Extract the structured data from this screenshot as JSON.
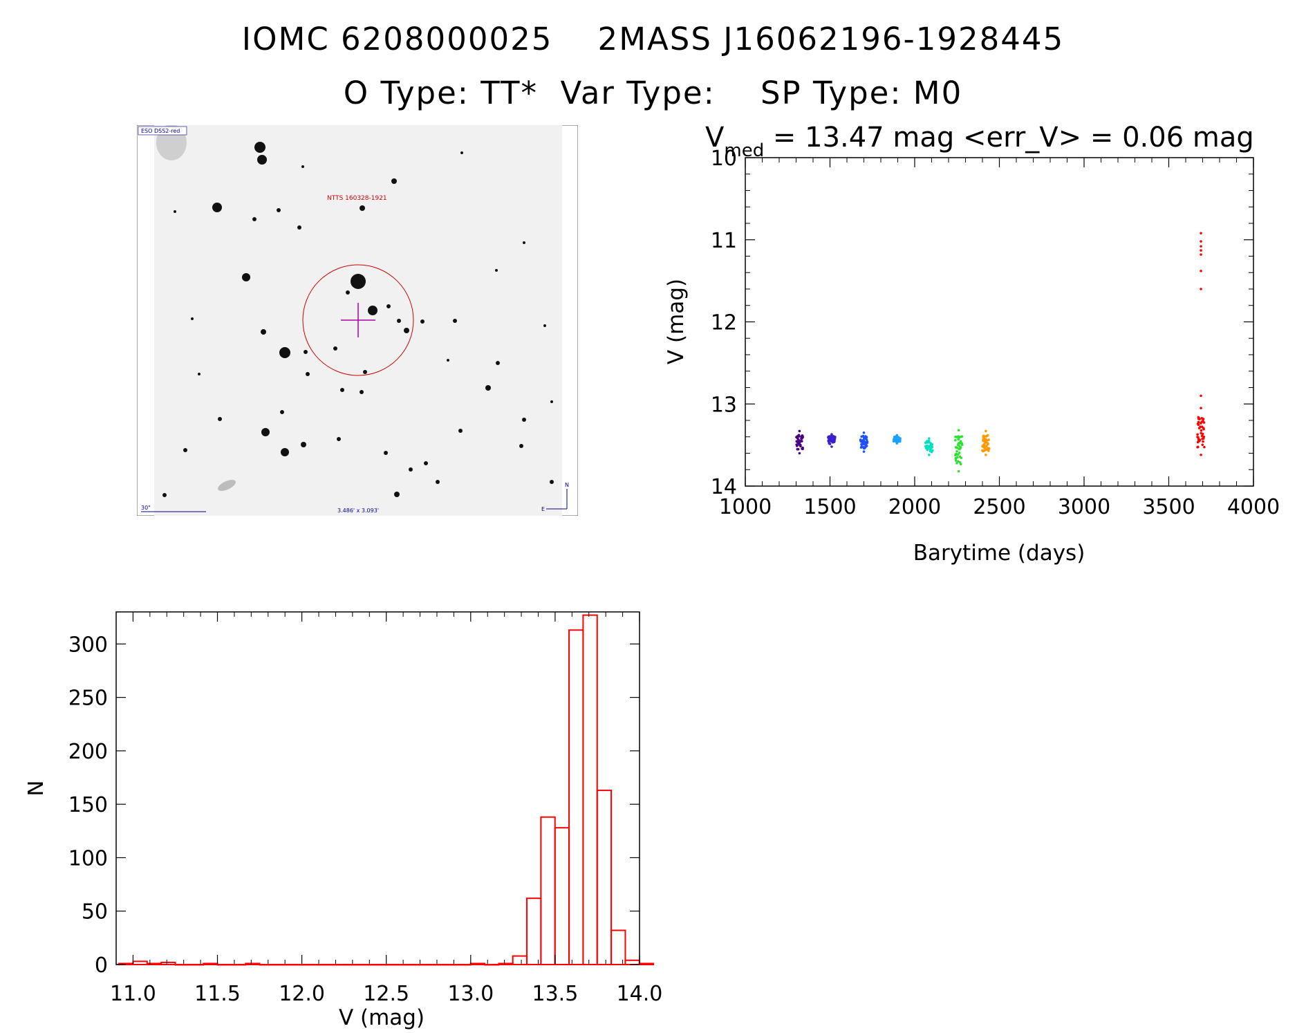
{
  "header": {
    "title_line1": "IOMC 6208000025    2MASS J16062196-1928445",
    "title_line2": "O Type: TT*  Var Type:    SP Type: M0"
  },
  "finder_chart": {
    "survey_label": "ESO DSS2-red",
    "object_label": "NTTS 160328-1921",
    "scale_label": "30\"",
    "fov_label": "3.486' x 3.093'",
    "north_label": "N",
    "east_label": "E"
  },
  "colors": {
    "histogram": "#ff0000",
    "circle": "#cc0000",
    "crosshair": "#aa00aa",
    "label_blue": "#00008b"
  },
  "chart_data": [
    {
      "type": "scatter",
      "title": "V_med = 13.47 mag <err_V> = 0.06 mag",
      "title_main": "V",
      "title_sub": "med",
      "title_rest": " = 13.47 mag <err_V> = 0.06 mag",
      "xlabel": "Barytime (days)",
      "ylabel": "V (mag)",
      "xlim": [
        1000,
        4000
      ],
      "ylim": [
        14,
        10
      ],
      "xticks": [
        1000,
        1500,
        2000,
        2500,
        3000,
        3500,
        4000
      ],
      "yticks": [
        10,
        11,
        12,
        13,
        14
      ],
      "groups": [
        {
          "x": 1320,
          "y_min": 13.33,
          "y_max": 13.6,
          "color": "#4b0082"
        },
        {
          "x": 1510,
          "y_min": 13.37,
          "y_max": 13.52,
          "color": "#3a1fd0"
        },
        {
          "x": 1700,
          "y_min": 13.35,
          "y_max": 13.58,
          "color": "#1e50ff"
        },
        {
          "x": 1895,
          "y_min": 13.38,
          "y_max": 13.48,
          "color": "#1ea0ff"
        },
        {
          "x": 2085,
          "y_min": 13.42,
          "y_max": 13.62,
          "color": "#00e0c0"
        },
        {
          "x": 2260,
          "y_min": 13.32,
          "y_max": 13.82,
          "color": "#30e030"
        },
        {
          "x": 2420,
          "y_min": 13.33,
          "y_max": 13.62,
          "color": "#ff9900"
        },
        {
          "x": 3690,
          "y_min": 13.05,
          "y_max": 13.62,
          "color": "#ff0000"
        }
      ],
      "outliers": [
        {
          "x": 3690,
          "y": 10.92,
          "color": "#ff0000"
        },
        {
          "x": 3690,
          "y": 11.02,
          "color": "#ff0000"
        },
        {
          "x": 3690,
          "y": 11.08,
          "color": "#ff0000"
        },
        {
          "x": 3690,
          "y": 11.13,
          "color": "#ff0000"
        },
        {
          "x": 3690,
          "y": 11.18,
          "color": "#ff0000"
        },
        {
          "x": 3690,
          "y": 11.38,
          "color": "#ff0000"
        },
        {
          "x": 3690,
          "y": 11.6,
          "color": "#ff0000"
        },
        {
          "x": 3690,
          "y": 12.9,
          "color": "#ff0000"
        }
      ]
    },
    {
      "type": "bar",
      "subtype": "histogram",
      "xlabel": "V (mag)",
      "ylabel": "N",
      "xlim": [
        10.9,
        14.0
      ],
      "ylim": [
        0,
        330
      ],
      "xticks": [
        11.0,
        11.5,
        12.0,
        12.5,
        13.0,
        13.5,
        14.0
      ],
      "yticks": [
        0,
        50,
        100,
        150,
        200,
        250,
        300
      ],
      "bin_width": 0.0833,
      "bin_start": 10.917,
      "counts": [
        1,
        3,
        1,
        2,
        0,
        0,
        1,
        0,
        0,
        1,
        0,
        0,
        0,
        0,
        0,
        0,
        0,
        0,
        0,
        0,
        0,
        0,
        0,
        0,
        0,
        1,
        0,
        1,
        8,
        62,
        138,
        128,
        313,
        327,
        163,
        32,
        4,
        1
      ]
    }
  ]
}
